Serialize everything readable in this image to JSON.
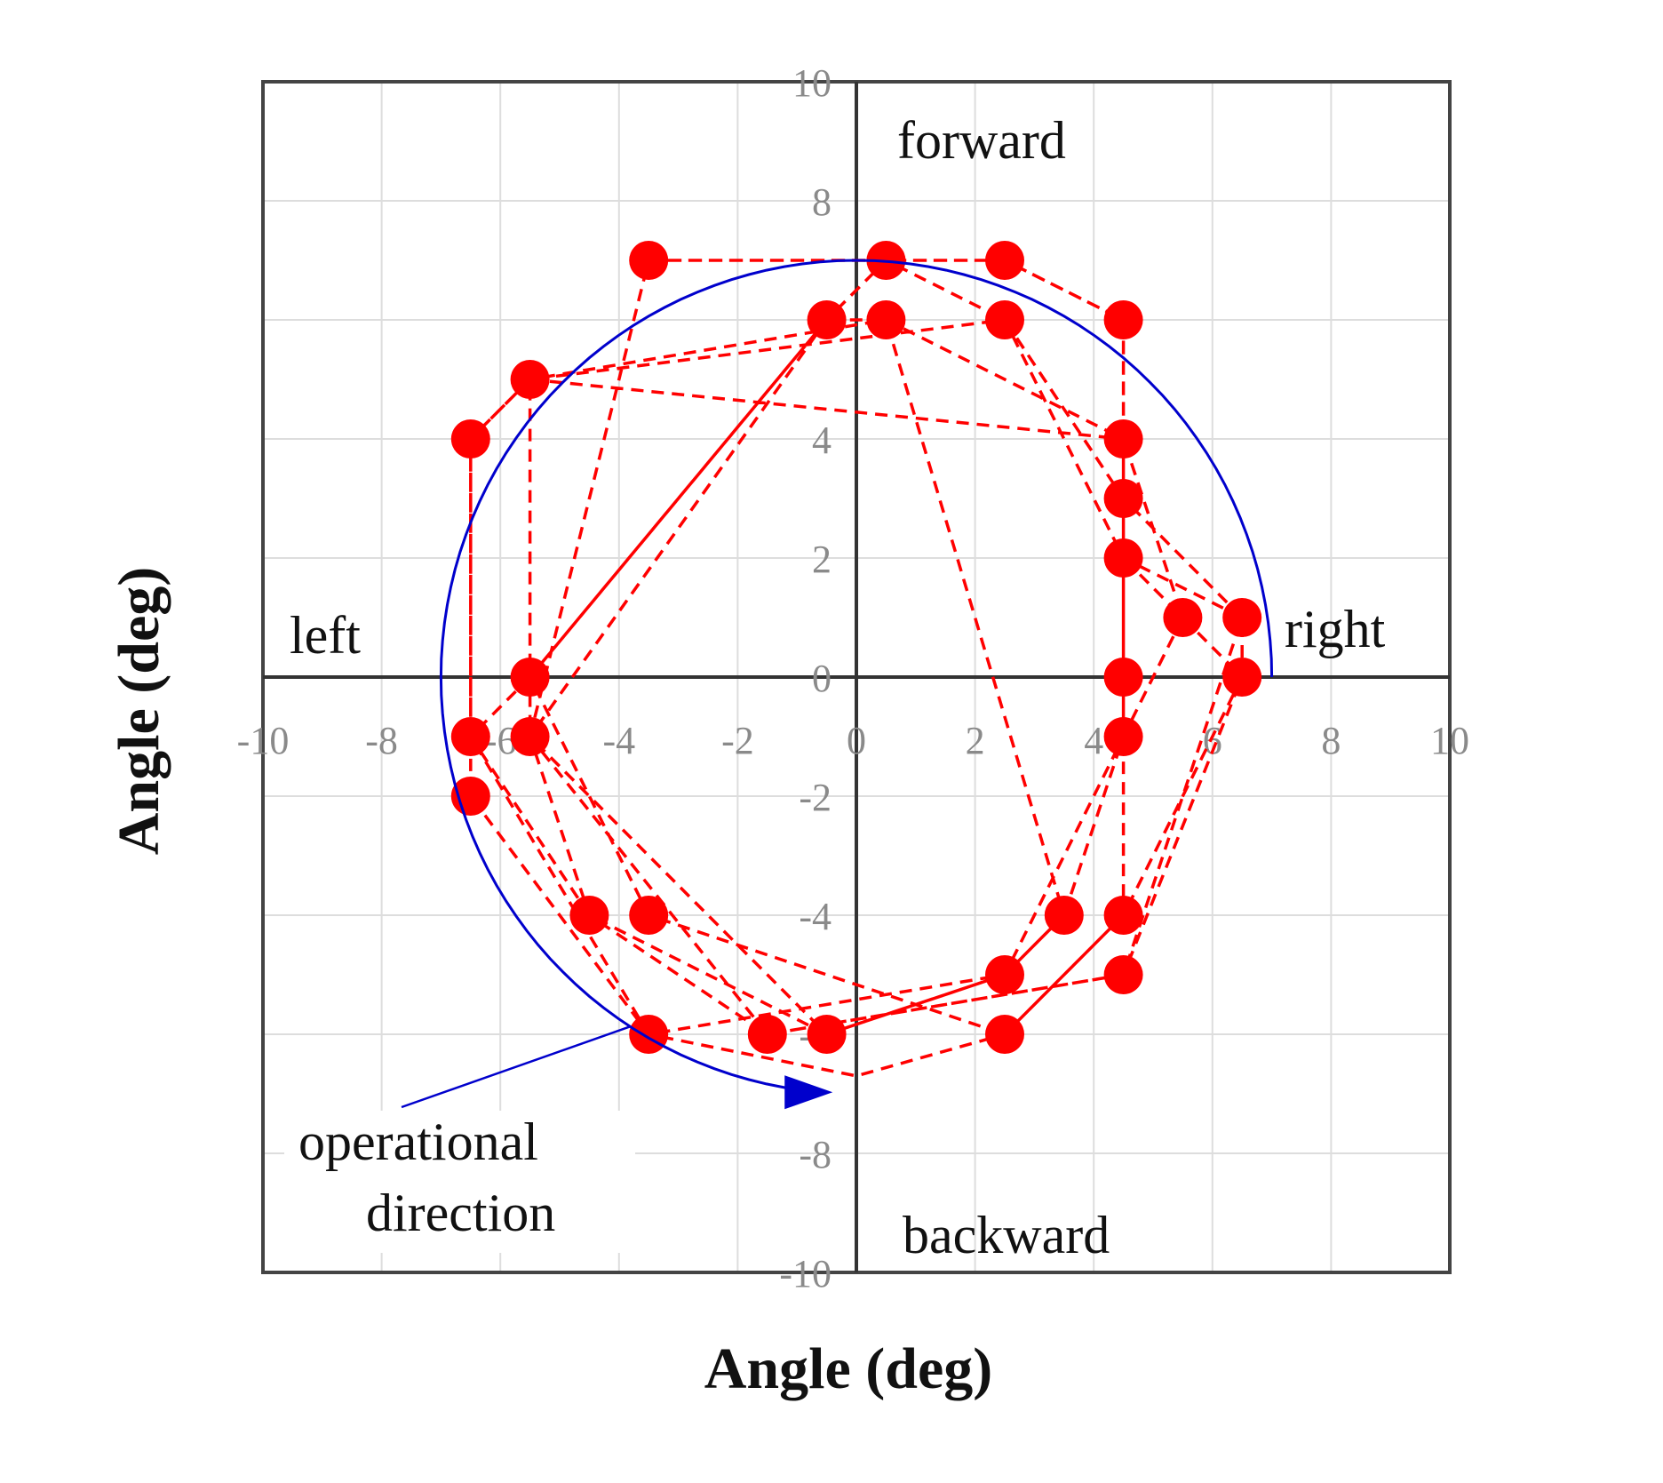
{
  "chart_data": {
    "type": "scatter",
    "xlabel": "Angle (deg)",
    "ylabel": "Angle (deg)",
    "xlim": [
      -10,
      10
    ],
    "ylim": [
      -10,
      10
    ],
    "x_ticks": [
      "-10",
      "-8",
      "-6",
      "-4",
      "-2",
      "0",
      "2",
      "4",
      "6",
      "8",
      "10"
    ],
    "y_ticks": [
      "10",
      "8",
      "6",
      "4",
      "2",
      "0",
      "-2",
      "-4",
      "-6",
      "-8",
      "-10"
    ],
    "grid": true,
    "colors": {
      "points": "#ff0000",
      "lines": "#ff0000",
      "arrow": "#0000cc",
      "axes": "#333333",
      "grid": "#dddddd"
    },
    "region_labels": {
      "forward": "forward",
      "backward": "backward",
      "left": "left",
      "right": "right"
    },
    "annotation": {
      "line1": "operational",
      "line2": "direction"
    },
    "direction_arc": {
      "radius": 7.0,
      "start_deg": 0,
      "end_deg": 265,
      "sense": "counterclockwise"
    },
    "points": [
      [
        -3.5,
        7
      ],
      [
        0.5,
        7
      ],
      [
        2.5,
        7
      ],
      [
        4.5,
        6
      ],
      [
        -0.5,
        6
      ],
      [
        0.5,
        6
      ],
      [
        2.5,
        6
      ],
      [
        -5.5,
        5
      ],
      [
        -6.5,
        4
      ],
      [
        4.5,
        4
      ],
      [
        4.5,
        3
      ],
      [
        4.5,
        2
      ],
      [
        5.5,
        1
      ],
      [
        6.5,
        1
      ],
      [
        -5.5,
        0
      ],
      [
        4.5,
        0
      ],
      [
        6.5,
        0
      ],
      [
        -6.5,
        -1
      ],
      [
        -5.5,
        -1
      ],
      [
        4.5,
        -1
      ],
      [
        -6.5,
        -2
      ],
      [
        -4.5,
        -4
      ],
      [
        -3.5,
        -4
      ],
      [
        3.5,
        -4
      ],
      [
        4.5,
        -4
      ],
      [
        2.5,
        -5
      ],
      [
        4.5,
        -5
      ],
      [
        -3.5,
        -6
      ],
      [
        -1.5,
        -6
      ],
      [
        -0.5,
        -6
      ],
      [
        2.5,
        -6
      ]
    ],
    "path": [
      [
        -3.5,
        7
      ],
      [
        2.5,
        7
      ],
      [
        4.5,
        6
      ],
      [
        4.5,
        4
      ],
      [
        5.5,
        1
      ],
      [
        6.5,
        0
      ],
      [
        4.5,
        -4
      ],
      [
        2.5,
        -6
      ],
      [
        0,
        -6.7
      ],
      [
        -3.5,
        -6
      ],
      [
        -6.5,
        -2
      ],
      [
        -6.5,
        4
      ],
      [
        -5.5,
        5
      ],
      [
        0.5,
        6
      ],
      [
        4.5,
        4
      ],
      [
        4.5,
        2
      ],
      [
        5.5,
        1
      ],
      [
        4.5,
        -1
      ],
      [
        3.5,
        -4
      ],
      [
        2.5,
        -5
      ],
      [
        -0.5,
        -6
      ],
      [
        -4.5,
        -4
      ],
      [
        -6.5,
        -1
      ],
      [
        -5.5,
        0
      ],
      [
        -0.5,
        6
      ],
      [
        0.5,
        7
      ],
      [
        2.5,
        6
      ],
      [
        4.5,
        3
      ],
      [
        6.5,
        1
      ],
      [
        6.5,
        0
      ],
      [
        4.5,
        -5
      ],
      [
        -1.5,
        -6
      ],
      [
        -5.5,
        -1
      ],
      [
        -5.5,
        5
      ],
      [
        4.5,
        4
      ],
      [
        4.5,
        0
      ],
      [
        4.5,
        -4
      ],
      [
        2.5,
        -6
      ],
      [
        -3.5,
        -4
      ],
      [
        -5.5,
        0
      ],
      [
        -0.5,
        6
      ],
      [
        0.5,
        6
      ],
      [
        3.5,
        -4
      ],
      [
        2.5,
        -5
      ],
      [
        -0.5,
        -6
      ],
      [
        -5.5,
        -1
      ],
      [
        -3.5,
        7
      ],
      [
        2.5,
        7
      ],
      [
        4.5,
        6
      ],
      [
        4.5,
        3
      ],
      [
        4.5,
        -1
      ],
      [
        2.5,
        -5
      ],
      [
        -3.5,
        -6
      ],
      [
        -6.5,
        -1
      ],
      [
        -6.5,
        4
      ],
      [
        -5.5,
        5
      ],
      [
        2.5,
        6
      ],
      [
        4.5,
        2
      ],
      [
        6.5,
        1
      ],
      [
        4.5,
        -5
      ],
      [
        -1.5,
        -6
      ],
      [
        -4.5,
        -4
      ],
      [
        -5.5,
        -1
      ],
      [
        -0.5,
        6
      ]
    ]
  }
}
